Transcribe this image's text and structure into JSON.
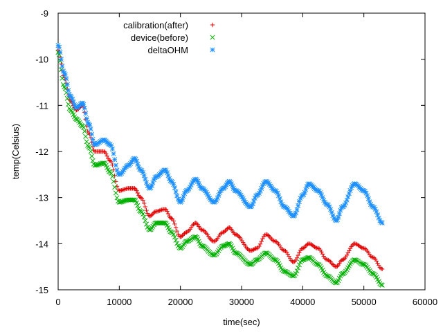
{
  "chart_data": {
    "type": "scatter",
    "title": "",
    "xlabel": "time(sec)",
    "ylabel": "temp(Celsius)",
    "xlim": [
      0,
      60000
    ],
    "ylim": [
      -15,
      -9
    ],
    "xticks": [
      0,
      10000,
      20000,
      30000,
      40000,
      50000,
      60000
    ],
    "xtick_labels": [
      "0",
      "10000",
      "20000",
      "30000",
      "40000",
      "50000",
      "60000"
    ],
    "yticks": [
      -15,
      -14,
      -13,
      -12,
      -11,
      -10,
      -9
    ],
    "ytick_labels": [
      "-15",
      "-14",
      "-13",
      "-12",
      "-11",
      "-10",
      "-9"
    ],
    "grid": false,
    "legend_position": "top-center",
    "series": [
      {
        "name": "calibration(after)",
        "marker": "plus",
        "color": "#e00000",
        "x": [
          0,
          1000,
          2000,
          3000,
          4000,
          5000,
          6000,
          7500,
          8500,
          10000,
          11500,
          12500,
          13500,
          15000,
          16000,
          17500,
          18500,
          20000,
          21000,
          22500,
          23500,
          25500,
          27000,
          28000,
          29000,
          31500,
          32500,
          34000,
          35500,
          37000,
          38500,
          40000,
          41000,
          42500,
          44000,
          45500,
          46500,
          48500,
          50000,
          51500,
          53000
        ],
        "y": [
          -9.8,
          -10.4,
          -10.9,
          -11.1,
          -11.0,
          -11.6,
          -12.0,
          -12.0,
          -12.2,
          -12.85,
          -12.8,
          -12.8,
          -13.0,
          -13.4,
          -13.3,
          -13.25,
          -13.45,
          -13.85,
          -13.75,
          -13.55,
          -13.7,
          -13.95,
          -13.75,
          -13.65,
          -13.8,
          -14.15,
          -14.1,
          -13.8,
          -13.95,
          -14.15,
          -14.4,
          -14.1,
          -14.0,
          -14.1,
          -14.35,
          -14.5,
          -14.35,
          -14.0,
          -14.1,
          -14.3,
          -14.55
        ]
      },
      {
        "name": "device(before)",
        "marker": "x",
        "color": "#00b000",
        "x": [
          0,
          1000,
          2000,
          3000,
          4000,
          5000,
          6000,
          7500,
          8500,
          10000,
          11500,
          12500,
          13500,
          15000,
          16000,
          17500,
          18500,
          20000,
          21000,
          22500,
          23500,
          25500,
          27000,
          28000,
          29000,
          31500,
          32500,
          34000,
          35500,
          37000,
          38500,
          40000,
          41000,
          42500,
          44000,
          45500,
          46500,
          48500,
          50000,
          51500,
          53000
        ],
        "y": [
          -9.85,
          -10.6,
          -11.1,
          -11.3,
          -11.45,
          -11.9,
          -12.3,
          -12.25,
          -12.45,
          -13.1,
          -13.05,
          -13.05,
          -13.3,
          -13.7,
          -13.55,
          -13.55,
          -13.75,
          -14.1,
          -13.95,
          -13.85,
          -14.05,
          -14.25,
          -14.05,
          -14.0,
          -14.2,
          -14.45,
          -14.35,
          -14.2,
          -14.35,
          -14.6,
          -14.7,
          -14.35,
          -14.3,
          -14.45,
          -14.7,
          -14.85,
          -14.65,
          -14.35,
          -14.45,
          -14.65,
          -14.9
        ]
      },
      {
        "name": "deltaOHM",
        "marker": "star",
        "color": "#1e90ff",
        "x": [
          0,
          1000,
          2000,
          3000,
          4000,
          5000,
          6000,
          7500,
          8500,
          10000,
          11500,
          12500,
          13500,
          15000,
          16000,
          17500,
          18500,
          20000,
          21000,
          22500,
          23500,
          25500,
          27000,
          28000,
          29000,
          31500,
          32500,
          34000,
          35500,
          37000,
          38500,
          40000,
          41000,
          42500,
          44000,
          45500,
          46500,
          48500,
          50000,
          51500,
          53000
        ],
        "y": [
          -9.7,
          -10.3,
          -10.8,
          -11.05,
          -10.95,
          -11.4,
          -11.85,
          -11.75,
          -11.85,
          -12.5,
          -12.3,
          -12.15,
          -12.4,
          -12.8,
          -12.55,
          -12.4,
          -12.65,
          -13.1,
          -12.85,
          -12.6,
          -12.8,
          -13.1,
          -12.8,
          -12.65,
          -12.85,
          -13.2,
          -12.95,
          -12.65,
          -12.85,
          -13.2,
          -13.4,
          -12.95,
          -12.7,
          -12.85,
          -13.15,
          -13.5,
          -13.2,
          -12.7,
          -12.85,
          -13.2,
          -13.55
        ]
      }
    ]
  }
}
